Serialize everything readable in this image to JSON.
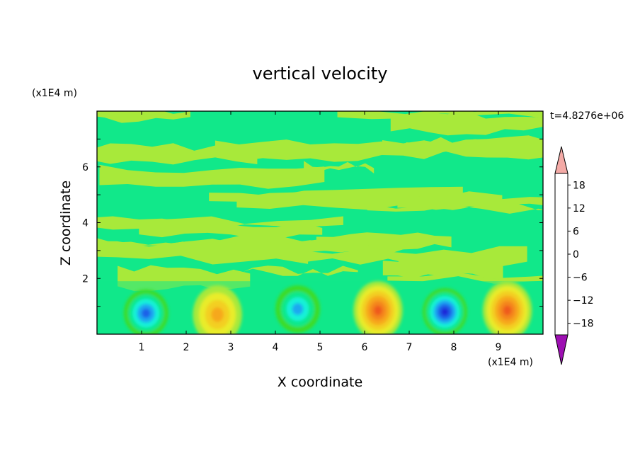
{
  "chart_data": {
    "type": "heatmap",
    "title": "vertical velocity",
    "xlabel": "X coordinate",
    "ylabel": "Z coordinate",
    "x_unit": "(x1E4 m)",
    "y_unit": "(x1E4 m)",
    "time_label": "t=4.8276e+06",
    "xlim": [
      0,
      10
    ],
    "ylim": [
      0,
      8
    ],
    "xticks": [
      "1",
      "2",
      "3",
      "4",
      "5",
      "6",
      "7",
      "8",
      "9"
    ],
    "yticks": [
      "2",
      "4",
      "6"
    ],
    "colorbar": {
      "labels": [
        "18",
        "12",
        "6",
        "0",
        "−6",
        "−12",
        "−18"
      ],
      "levels": [
        21,
        18,
        15,
        12,
        9,
        6,
        3,
        0,
        -3,
        -6,
        -9,
        -12,
        -15,
        -18,
        -21
      ],
      "colors": [
        "#e8261c",
        "#ef5a1e",
        "#f4861f",
        "#f6a81d",
        "#f3cf22",
        "#e9ec2b",
        "#a8e93a",
        "#3cdc28",
        "#11e88a",
        "#14f2d8",
        "#1aa8f0",
        "#1b62e8",
        "#1a26d8",
        "#2a0ca0"
      ],
      "over_color": "#f4aaa6",
      "under_color": "#9d0fb2"
    },
    "field_features": [
      {
        "kind": "downdraft",
        "x": 1.1,
        "z": 0.75,
        "peak": -12
      },
      {
        "kind": "updraft",
        "x": 2.7,
        "z": 0.7,
        "peak": 9
      },
      {
        "kind": "downdraft",
        "x": 4.5,
        "z": 0.9,
        "peak": -9
      },
      {
        "kind": "updraft",
        "x": 6.3,
        "z": 0.85,
        "peak": 15
      },
      {
        "kind": "downdraft",
        "x": 7.8,
        "z": 0.8,
        "peak": -15
      },
      {
        "kind": "updraft",
        "x": 9.2,
        "z": 0.85,
        "peak": 15
      }
    ]
  }
}
